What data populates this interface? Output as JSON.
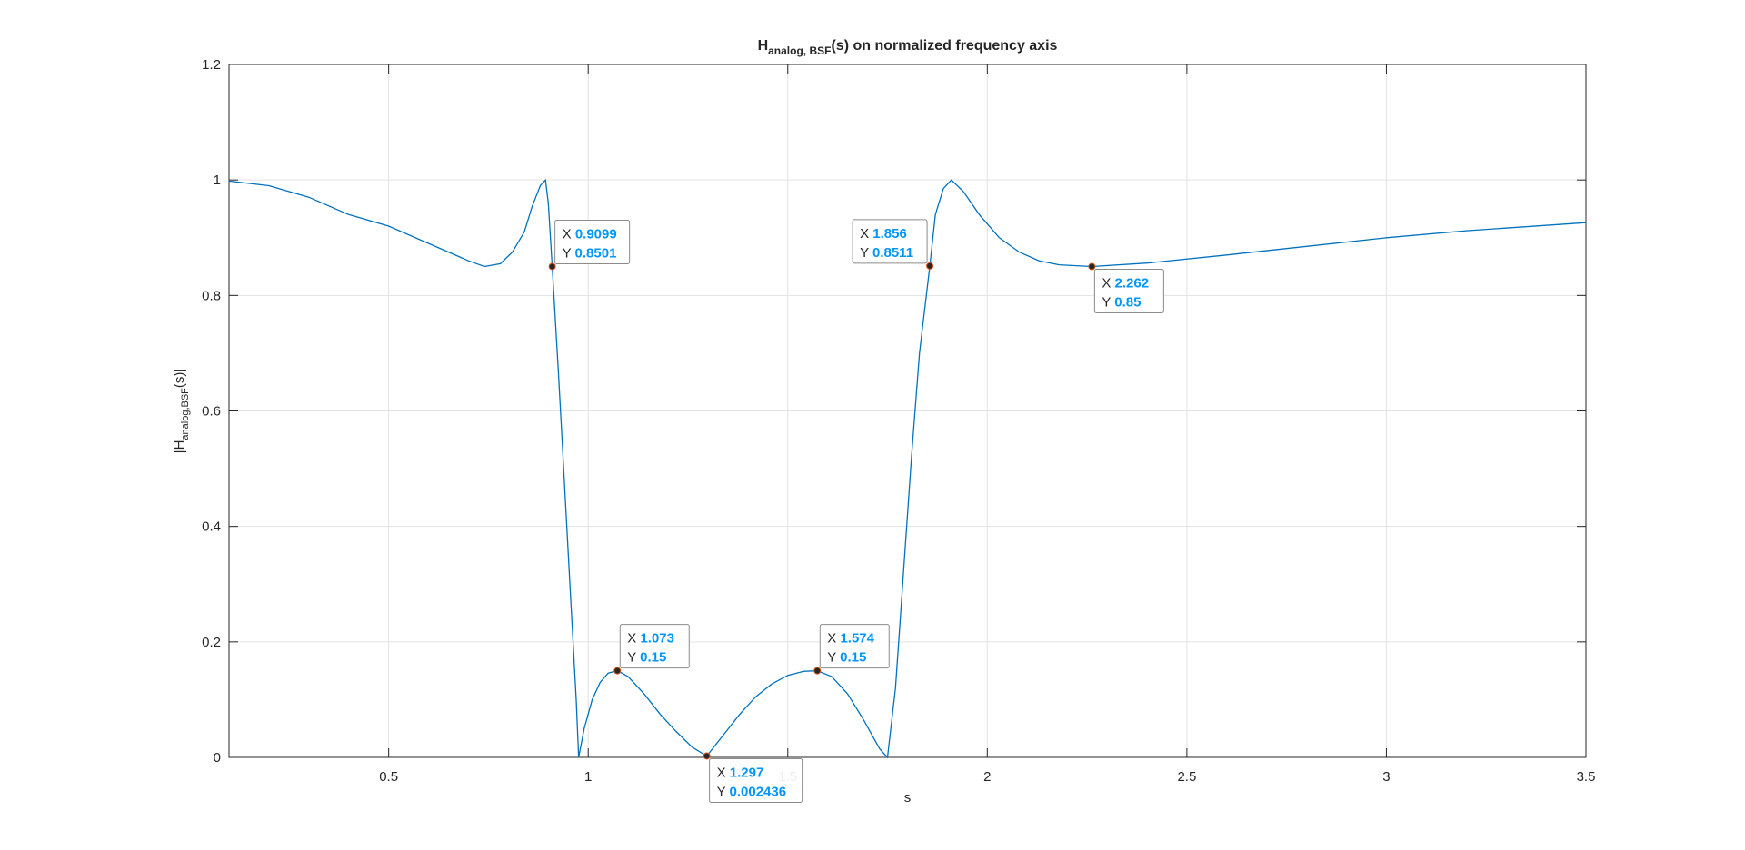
{
  "chart_data": {
    "type": "line",
    "title": {
      "main": "H",
      "sub": "analog, BSF",
      "rest": "(s) on normalized frequency axis"
    },
    "xlabel": "s",
    "ylabel": {
      "pre": "|H",
      "sub": "analog,BSF",
      "post": "(s)|"
    },
    "xlim": [
      0.1,
      3.5
    ],
    "ylim": [
      0,
      1.2
    ],
    "xticks": [
      0.5,
      1,
      1.5,
      2,
      2.5,
      3,
      3.5
    ],
    "xtick_labels": [
      "0.5",
      "1",
      "1.5",
      "2",
      "2.5",
      "3",
      "3.5"
    ],
    "yticks": [
      0,
      0.2,
      0.4,
      0.6,
      0.8,
      1,
      1.2
    ],
    "ytick_labels": [
      "0",
      "0.2",
      "0.4",
      "0.6",
      "0.8",
      "1",
      "1.2"
    ],
    "grid": true,
    "line_color": "#0072BD",
    "series": [
      {
        "x": [
          0.1,
          0.2,
          0.3,
          0.4,
          0.5,
          0.6,
          0.65,
          0.7,
          0.74,
          0.78,
          0.81,
          0.84,
          0.86,
          0.88,
          0.893,
          0.9,
          0.9099,
          0.925,
          0.94,
          0.955,
          0.97,
          0.976,
          0.99,
          1.01,
          1.03,
          1.05,
          1.073,
          1.1,
          1.14,
          1.18,
          1.22,
          1.26,
          1.297,
          1.34,
          1.38,
          1.42,
          1.46,
          1.5,
          1.54,
          1.574,
          1.61,
          1.65,
          1.69,
          1.73,
          1.75,
          1.77,
          1.79,
          1.81,
          1.83,
          1.856,
          1.87,
          1.89,
          1.91,
          1.94,
          1.98,
          2.03,
          2.08,
          2.13,
          2.18,
          2.262,
          2.4,
          2.6,
          2.8,
          3.0,
          3.2,
          3.5
        ],
        "y": [
          0.998,
          0.99,
          0.97,
          0.94,
          0.92,
          0.89,
          0.875,
          0.86,
          0.85,
          0.855,
          0.875,
          0.91,
          0.955,
          0.99,
          1.0,
          0.96,
          0.8501,
          0.67,
          0.48,
          0.29,
          0.1,
          0.0,
          0.05,
          0.1,
          0.13,
          0.146,
          0.15,
          0.14,
          0.11,
          0.075,
          0.045,
          0.018,
          0.002436,
          0.04,
          0.075,
          0.105,
          0.127,
          0.142,
          0.149,
          0.15,
          0.14,
          0.11,
          0.065,
          0.015,
          0.0,
          0.12,
          0.32,
          0.52,
          0.7,
          0.8511,
          0.94,
          0.985,
          1.0,
          0.98,
          0.94,
          0.9,
          0.875,
          0.86,
          0.853,
          0.85,
          0.856,
          0.87,
          0.885,
          0.9,
          0.912,
          0.926
        ]
      }
    ],
    "datatips": [
      {
        "x_label": "X",
        "x_value": "0.9099",
        "y_label": "Y",
        "y_value": "0.8501",
        "x": 0.9099,
        "y": 0.8501,
        "side": "above-right"
      },
      {
        "x_label": "X",
        "x_value": "1.856",
        "y_label": "Y",
        "y_value": "0.8511",
        "x": 1.856,
        "y": 0.8511,
        "side": "above-left"
      },
      {
        "x_label": "X",
        "x_value": "2.262",
        "y_label": "Y",
        "y_value": "0.85",
        "x": 2.262,
        "y": 0.85,
        "side": "below-right"
      },
      {
        "x_label": "X",
        "x_value": "1.073",
        "y_label": "Y",
        "y_value": "0.15",
        "x": 1.073,
        "y": 0.15,
        "side": "above-right"
      },
      {
        "x_label": "X",
        "x_value": "1.574",
        "y_label": "Y",
        "y_value": "0.15",
        "x": 1.574,
        "y": 0.15,
        "side": "above-right"
      },
      {
        "x_label": "X",
        "x_value": "1.297",
        "y_label": "Y",
        "y_value": "0.002436",
        "x": 1.297,
        "y": 0.002436,
        "side": "below-right"
      }
    ],
    "datatip_value_color": "#0095FF"
  }
}
